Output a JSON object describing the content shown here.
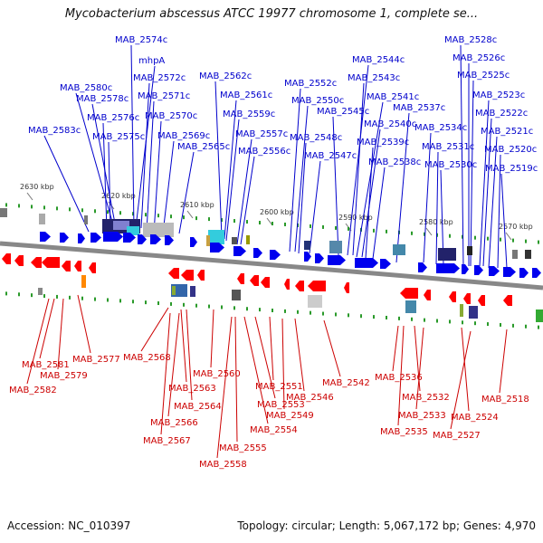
{
  "title": "Mycobacterium abscessus ATCC 19977 chromosome 1, complete se...",
  "footer": {
    "accession_label": "Accession: NC_010397",
    "summary": "Topology: circular; Length: 5,067,172 bp; Genes: 4,970"
  },
  "colors": {
    "top_strand": "#0000ee",
    "bottom_strand": "#ff0000",
    "top_label": "#0000cc",
    "bottom_label": "#cc0000",
    "backbone": "#888888",
    "tick_green": "#2a9a2a"
  },
  "scale_ticks": [
    "2630 kbp",
    "2620 kbp",
    "2610 kbp",
    "2600 kbp",
    "2590 kbp",
    "2580 kbp",
    "2570 kbp"
  ],
  "top_genes": [
    "MAB_2574c",
    "mhpA",
    "MAB_2572c",
    "MAB_2580c",
    "MAB_2578c",
    "MAB_2571c",
    "MAB_2576c",
    "MAB_2570c",
    "MAB_2583c",
    "MAB_2575c",
    "MAB_2569c",
    "MAB_2565c",
    "MAB_2562c",
    "MAB_2561c",
    "MAB_2559c",
    "MAB_2557c",
    "MAB_2556c",
    "MAB_2552c",
    "MAB_2550c",
    "MAB_2548c",
    "MAB_2547c",
    "MAB_2544c",
    "MAB_2543c",
    "MAB_2541c",
    "MAB_2545c",
    "MAB_2540c",
    "MAB_2539c",
    "MAB_2538c",
    "MAB_2537c",
    "MAB_2534c",
    "MAB_2531c",
    "MAB_2530c",
    "MAB_2528c",
    "MAB_2526c",
    "MAB_2525c",
    "MAB_2523c",
    "MAB_2522c",
    "MAB_2521c",
    "MAB_2520c",
    "MAB_2519c"
  ],
  "bottom_genes": [
    "MAB_2581",
    "MAB_2577",
    "MAB_2579",
    "MAB_2582",
    "MAB_2568",
    "MAB_2560",
    "MAB_2563",
    "MAB_2564",
    "MAB_2566",
    "MAB_2567",
    "MAB_2551",
    "MAB_2553",
    "MAB_2546",
    "MAB_2549",
    "MAB_2554",
    "MAB_2555",
    "MAB_2558",
    "MAB_2542",
    "MAB_2536",
    "MAB_2532",
    "MAB_2533",
    "MAB_2535",
    "MAB_2524",
    "MAB_2527",
    "MAB_2518"
  ]
}
